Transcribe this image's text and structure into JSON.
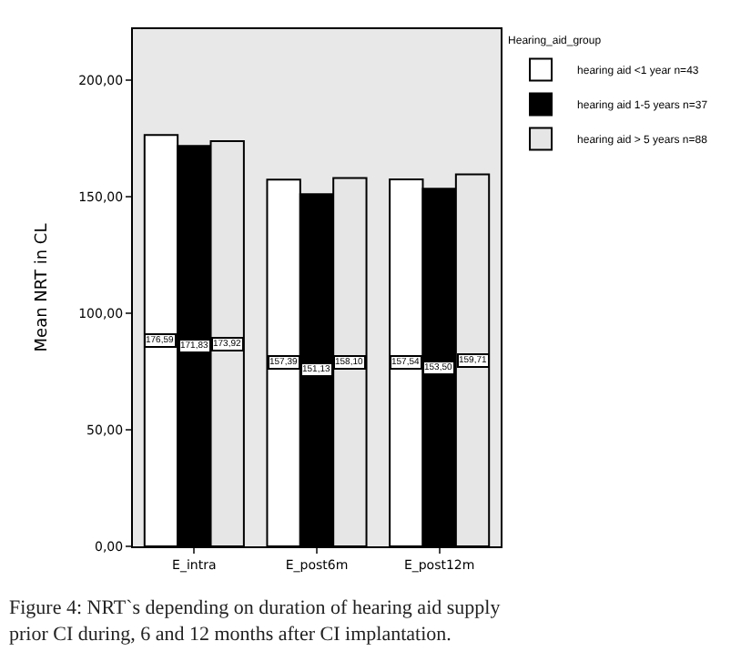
{
  "chart_data": {
    "type": "bar",
    "ylabel": "Mean NRT in CL",
    "legend_title": "Hearing_aid_group",
    "categories": [
      "E_intra",
      "E_post6m",
      "E_post12m"
    ],
    "series": [
      {
        "name": "hearing aid <1 year n=43",
        "color": "#ffffff",
        "values": [
          176.59,
          157.39,
          157.54
        ],
        "value_labels": [
          "176,59",
          "157,39",
          "157,54"
        ]
      },
      {
        "name": "hearing aid 1-5 years n=37",
        "color": "#000000",
        "values": [
          171.83,
          151.13,
          153.5
        ],
        "value_labels": [
          "171,83",
          "151,13",
          "153,50"
        ]
      },
      {
        "name": "hearing aid > 5 years n=88",
        "color": "#e6e6e6",
        "values": [
          173.92,
          158.1,
          159.71
        ],
        "value_labels": [
          "173,92",
          "158,10",
          "159,71"
        ]
      }
    ],
    "ylim": [
      0,
      222
    ],
    "yticks": [
      {
        "value": 0,
        "label": "0,00"
      },
      {
        "value": 50,
        "label": "50,00"
      },
      {
        "value": 100,
        "label": "100,00"
      },
      {
        "value": 150,
        "label": "150,00"
      },
      {
        "value": 200,
        "label": "200,00"
      }
    ],
    "grid": false,
    "legend": "top right",
    "annotations": [
      "Figure 4: NRT`s depending on duration of hearing aid supply prior CI during, 6 and 12 months after CI implantation."
    ]
  }
}
